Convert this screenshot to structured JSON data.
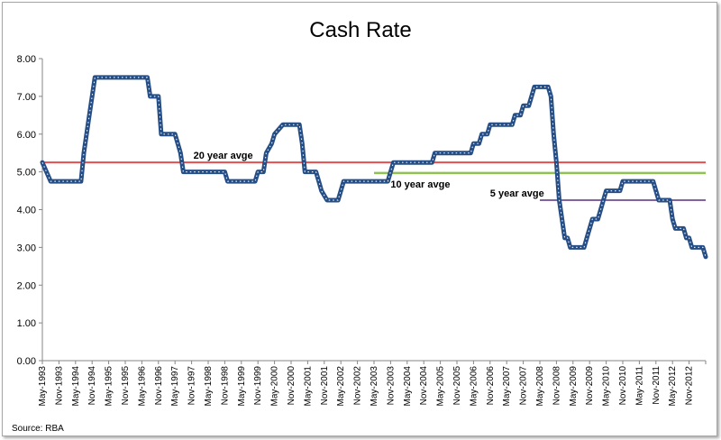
{
  "chart_data": {
    "type": "line",
    "title": "Cash Rate",
    "source": "Source: RBA",
    "xlabel": "",
    "ylabel": "",
    "ylim": [
      0,
      8
    ],
    "yticks": [
      "0.00",
      "1.00",
      "2.00",
      "3.00",
      "4.00",
      "5.00",
      "6.00",
      "7.00",
      "8.00"
    ],
    "x_categories": [
      "May-1993",
      "Nov-1993",
      "May-1994",
      "Nov-1994",
      "May-1995",
      "Nov-1995",
      "May-1996",
      "Nov-1996",
      "May-1997",
      "Nov-1997",
      "May-1998",
      "Nov-1998",
      "May-1999",
      "Nov-1999",
      "May-2000",
      "Nov-2000",
      "May-2001",
      "Nov-2001",
      "May-2002",
      "Nov-2002",
      "May-2003",
      "Nov-2003",
      "May-2004",
      "Nov-2004",
      "May-2005",
      "Nov-2005",
      "May-2006",
      "Nov-2006",
      "May-2007",
      "Nov-2007",
      "May-2008",
      "Nov-2008",
      "May-2009",
      "Nov-2009",
      "May-2010",
      "Nov-2010",
      "May-2011",
      "Nov-2011",
      "May-2012",
      "Nov-2012"
    ],
    "grid": false,
    "series": [
      {
        "name": "",
        "color": "#254e86",
        "points": [
          [
            "May-1993",
            5.25
          ],
          [
            "Aug-1993",
            4.75
          ],
          [
            "Jul-1994",
            4.75
          ],
          [
            "Aug-1994",
            5.5
          ],
          [
            "Oct-1994",
            6.5
          ],
          [
            "Dec-1994",
            7.5
          ],
          [
            "Jul-1996",
            7.5
          ],
          [
            "Aug-1996",
            7.0
          ],
          [
            "Nov-1996",
            7.0
          ],
          [
            "Dec-1996",
            6.0
          ],
          [
            "May-1997",
            6.0
          ],
          [
            "Jul-1997",
            5.5
          ],
          [
            "Aug-1997",
            5.0
          ],
          [
            "Nov-1998",
            5.0
          ],
          [
            "Dec-1998",
            4.75
          ],
          [
            "Oct-1999",
            4.75
          ],
          [
            "Nov-1999",
            5.0
          ],
          [
            "Jan-2000",
            5.0
          ],
          [
            "Feb-2000",
            5.5
          ],
          [
            "Apr-2000",
            5.75
          ],
          [
            "May-2000",
            6.0
          ],
          [
            "Aug-2000",
            6.25
          ],
          [
            "Feb-2001",
            6.25
          ],
          [
            "Mar-2001",
            5.75
          ],
          [
            "Apr-2001",
            5.0
          ],
          [
            "Aug-2001",
            5.0
          ],
          [
            "Sep-2001",
            4.75
          ],
          [
            "Oct-2001",
            4.5
          ],
          [
            "Dec-2001",
            4.25
          ],
          [
            "Apr-2002",
            4.25
          ],
          [
            "May-2002",
            4.5
          ],
          [
            "Jun-2002",
            4.75
          ],
          [
            "Oct-2003",
            4.75
          ],
          [
            "Nov-2003",
            5.0
          ],
          [
            "Dec-2003",
            5.25
          ],
          [
            "Feb-2005",
            5.25
          ],
          [
            "Mar-2005",
            5.5
          ],
          [
            "Apr-2006",
            5.5
          ],
          [
            "May-2006",
            5.75
          ],
          [
            "Jul-2006",
            5.75
          ],
          [
            "Aug-2006",
            6.0
          ],
          [
            "Oct-2006",
            6.0
          ],
          [
            "Nov-2006",
            6.25
          ],
          [
            "Jul-2007",
            6.25
          ],
          [
            "Aug-2007",
            6.5
          ],
          [
            "Oct-2007",
            6.5
          ],
          [
            "Nov-2007",
            6.75
          ],
          [
            "Jan-2008",
            6.75
          ],
          [
            "Feb-2008",
            7.0
          ],
          [
            "Mar-2008",
            7.25
          ],
          [
            "Aug-2008",
            7.25
          ],
          [
            "Sep-2008",
            7.0
          ],
          [
            "Oct-2008",
            6.0
          ],
          [
            "Nov-2008",
            5.25
          ],
          [
            "Dec-2008",
            4.25
          ],
          [
            "Feb-2009",
            3.25
          ],
          [
            "Mar-2009",
            3.25
          ],
          [
            "Apr-2009",
            3.0
          ],
          [
            "Sep-2009",
            3.0
          ],
          [
            "Oct-2009",
            3.25
          ],
          [
            "Nov-2009",
            3.5
          ],
          [
            "Dec-2009",
            3.75
          ],
          [
            "Feb-2010",
            3.75
          ],
          [
            "Mar-2010",
            4.0
          ],
          [
            "Apr-2010",
            4.25
          ],
          [
            "May-2010",
            4.5
          ],
          [
            "Oct-2010",
            4.5
          ],
          [
            "Nov-2010",
            4.75
          ],
          [
            "Oct-2011",
            4.75
          ],
          [
            "Nov-2011",
            4.5
          ],
          [
            "Dec-2011",
            4.25
          ],
          [
            "Apr-2012",
            4.25
          ],
          [
            "May-2012",
            3.75
          ],
          [
            "Jun-2012",
            3.5
          ],
          [
            "Sep-2012",
            3.5
          ],
          [
            "Oct-2012",
            3.25
          ],
          [
            "Nov-2012",
            3.25
          ],
          [
            "Dec-2012",
            3.0
          ],
          [
            "Apr-2013",
            3.0
          ],
          [
            "May-2013",
            2.75
          ]
        ]
      }
    ],
    "reference_lines": [
      {
        "label": "20 year avge",
        "value": 5.25,
        "color": "#e05050",
        "from": "May-1993",
        "to": "May-2013"
      },
      {
        "label": "10 year avge",
        "value": 4.97,
        "color": "#92c153",
        "from": "May-2003",
        "to": "May-2013"
      },
      {
        "label": "5 year avge",
        "value": 4.25,
        "color": "#8064a2",
        "from": "May-2008",
        "to": "May-2013"
      }
    ]
  }
}
